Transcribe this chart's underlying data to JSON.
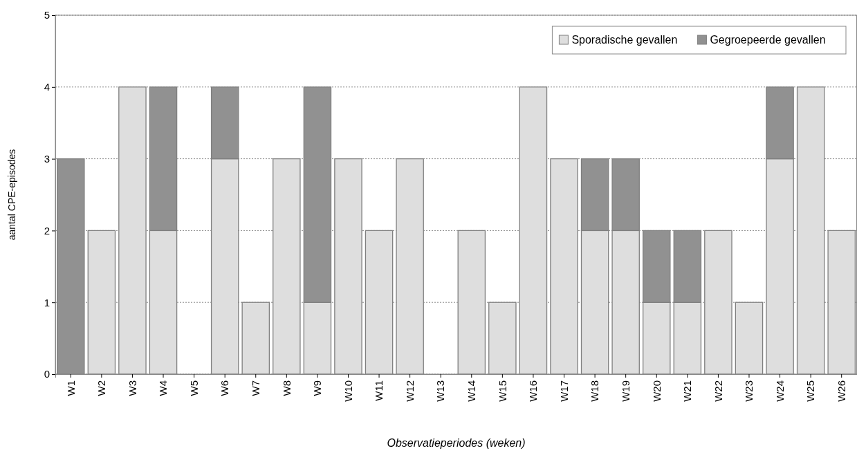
{
  "chart_data": {
    "type": "bar",
    "stacked": true,
    "xlabel": "Observatieperiodes (weken)",
    "ylabel": "aantal CPE-episodes",
    "categories": [
      "W1",
      "W2",
      "W3",
      "W4",
      "W5",
      "W6",
      "W7",
      "W8",
      "W9",
      "W10",
      "W11",
      "W12",
      "W13",
      "W14",
      "W15",
      "W16",
      "W17",
      "W18",
      "W19",
      "W20",
      "W21",
      "W22",
      "W23",
      "W24",
      "W25",
      "W26"
    ],
    "series": [
      {
        "name": "Sporadische gevallen",
        "color": "#dedede",
        "values": [
          0,
          2,
          4,
          2,
          0,
          3,
          1,
          3,
          1,
          3,
          2,
          3,
          0,
          2,
          1,
          4,
          3,
          2,
          2,
          1,
          1,
          2,
          1,
          3,
          4,
          2
        ]
      },
      {
        "name": "Gegroepeerde gevallen",
        "color": "#919191",
        "values": [
          3,
          0,
          0,
          2,
          0,
          1,
          0,
          0,
          3,
          0,
          0,
          0,
          0,
          0,
          0,
          0,
          0,
          1,
          1,
          1,
          1,
          0,
          0,
          1,
          0,
          0
        ]
      }
    ],
    "ylim": [
      0,
      5
    ],
    "yticks": [
      0,
      1,
      2,
      3,
      4,
      5
    ],
    "grid": "y",
    "legend": "top right"
  }
}
